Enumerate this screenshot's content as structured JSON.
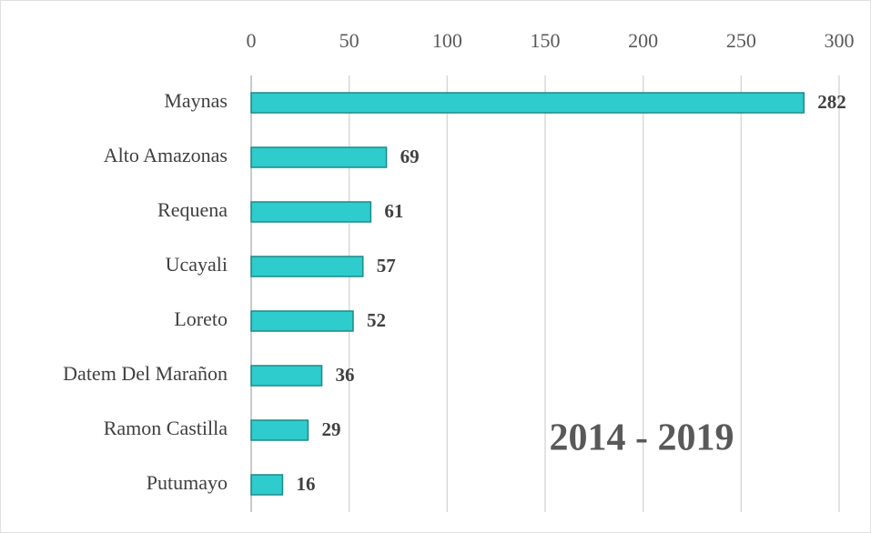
{
  "chart_data": {
    "type": "bar",
    "categories": [
      "Maynas",
      "Alto Amazonas",
      "Requena",
      "Ucayali",
      "Loreto",
      "Datem Del Marañon",
      "Ramon Castilla",
      "Putumayo"
    ],
    "values": [
      282,
      69,
      61,
      57,
      52,
      36,
      29,
      16
    ],
    "color": "#2ecccc",
    "xlim": [
      0,
      300
    ],
    "xticks": [
      0,
      50,
      100,
      150,
      200,
      250,
      300
    ],
    "grid": true,
    "annotation": "2014 - 2019"
  }
}
